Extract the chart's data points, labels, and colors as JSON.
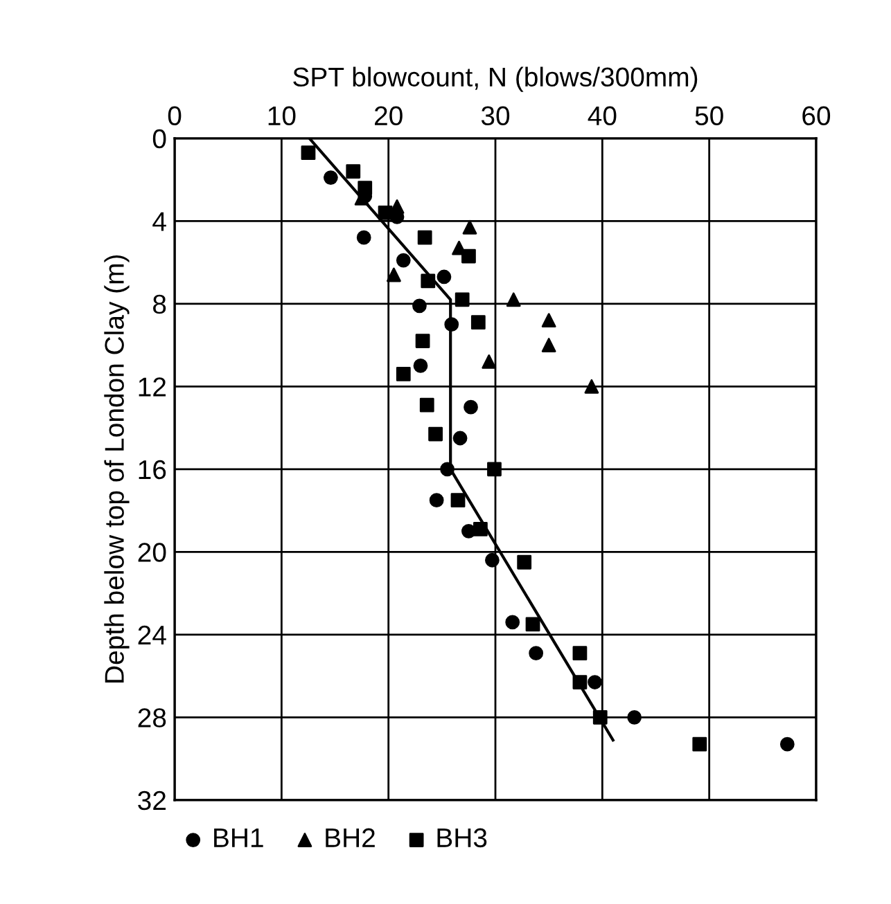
{
  "chart_data": {
    "type": "scatter",
    "xlabel": "SPT blowcount, N (blows/300mm)",
    "ylabel": "Depth below top of London Clay (m)",
    "xlim": [
      0,
      60
    ],
    "xticks": [
      0,
      10,
      20,
      30,
      40,
      50,
      60
    ],
    "ylim": [
      32,
      0
    ],
    "yticks": [
      0,
      4,
      8,
      12,
      16,
      20,
      24,
      28,
      32
    ],
    "grid": true,
    "legend": "bottom left",
    "series": [
      {
        "name": "BH1",
        "color": "#000000",
        "marker": "circle",
        "x": [
          14.6,
          17.8,
          20.8,
          17.7,
          21.4,
          25.2,
          22.9,
          25.9,
          23.0,
          27.7,
          26.7,
          25.5,
          24.5,
          27.5,
          29.7,
          31.6,
          33.8,
          39.3,
          43.0,
          57.3
        ],
        "values": [
          1.9,
          2.8,
          3.8,
          4.8,
          5.9,
          6.7,
          8.1,
          9.0,
          11.0,
          13.0,
          14.5,
          16.0,
          17.5,
          19.0,
          20.4,
          23.4,
          24.9,
          26.3,
          28.0,
          29.3
        ]
      },
      {
        "name": "BH2",
        "color": "#000000",
        "marker": "triangle",
        "x": [
          17.5,
          20.8,
          27.6,
          26.6,
          20.5,
          31.7,
          35.0,
          35.0,
          29.4,
          39.0
        ],
        "values": [
          2.9,
          3.3,
          4.3,
          5.3,
          6.6,
          7.8,
          8.8,
          10.0,
          10.8,
          12.0
        ]
      },
      {
        "name": "BH3",
        "color": "#000000",
        "marker": "square",
        "x": [
          12.5,
          16.7,
          17.8,
          19.7,
          23.4,
          27.5,
          23.7,
          26.9,
          28.4,
          23.2,
          21.4,
          23.6,
          24.4,
          29.9,
          26.5,
          28.6,
          32.7,
          33.5,
          37.9,
          37.9,
          39.8,
          49.1
        ],
        "values": [
          0.7,
          1.6,
          2.4,
          3.6,
          4.8,
          5.7,
          6.9,
          7.8,
          8.9,
          9.8,
          11.4,
          12.9,
          14.3,
          16.0,
          17.5,
          18.9,
          20.5,
          23.5,
          24.9,
          26.3,
          28.0,
          29.3
        ]
      },
      {
        "type": "line",
        "color": "#000000",
        "marker": "none",
        "line_style": "solid",
        "x": [
          12.6,
          25.8,
          25.8,
          41.0
        ],
        "values": [
          0,
          7.8,
          16.0,
          29.1
        ]
      }
    ]
  }
}
